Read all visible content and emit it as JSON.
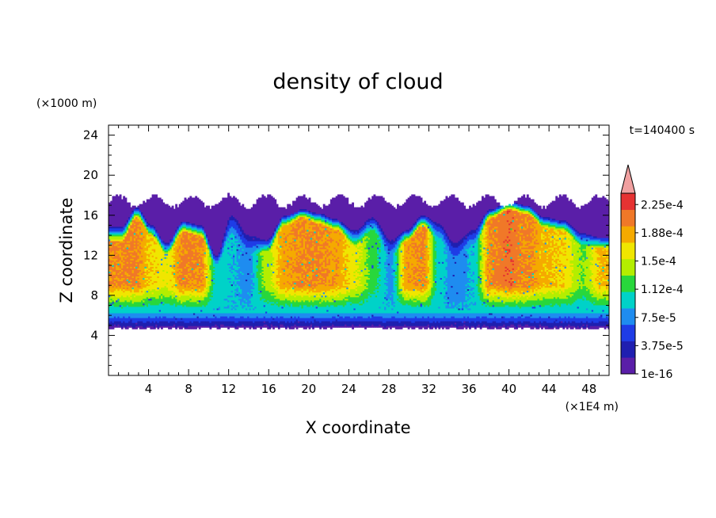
{
  "chart_data": {
    "type": "heatmap",
    "title": "density of cloud",
    "xlabel": "X coordinate",
    "ylabel": "Z coordinate",
    "x_unit": "(×1E4 m)",
    "y_unit": "(×1000 m)",
    "time_label": "t=140400 s",
    "xlim": [
      0,
      50
    ],
    "ylim": [
      0,
      25
    ],
    "x_ticks": [
      4,
      8,
      12,
      16,
      20,
      24,
      28,
      32,
      36,
      40,
      44,
      48
    ],
    "y_ticks": [
      4,
      8,
      12,
      16,
      20,
      24
    ],
    "cloud_base": 4.6,
    "colorbar": {
      "labels": [
        "2.25e-4",
        "1.88e-4",
        "1.5e-4",
        "1.12e-4",
        "7.5e-5",
        "3.75e-5",
        "1e-16"
      ],
      "levels": [
        0,
        3.75e-05,
        7.5e-05,
        0.0001125,
        0.00015,
        0.0001875,
        0.000225,
        0.00024
      ],
      "colors": [
        "#5a1ea8",
        "#1f1fb0",
        "#1e3ce6",
        "#1e8cf0",
        "#00d2c8",
        "#28d73c",
        "#b4ee00",
        "#f0e600",
        "#f5aa00",
        "#f07828",
        "#e63232"
      ],
      "extend_color": "#f0a0a0"
    },
    "columns": [
      {
        "x": 1.3,
        "top": 14.8,
        "core_top": 13.5,
        "peak": 0.0002
      },
      {
        "x": 2.8,
        "top": 16.8,
        "core_top": 15.8,
        "peak": 0.0002
      },
      {
        "x": 4.3,
        "top": 15.0,
        "core_top": 14.0,
        "peak": 0.00017
      },
      {
        "x": 5.8,
        "top": 13.2,
        "core_top": 12.2,
        "peak": 0.00016
      },
      {
        "x": 7.5,
        "top": 15.4,
        "core_top": 14.4,
        "peak": 0.0002
      },
      {
        "x": 9.2,
        "top": 15.0,
        "core_top": 14.0,
        "peak": 0.0002
      },
      {
        "x": 10.8,
        "top": 12.0,
        "core_top": 11.0,
        "peak": 0.0001
      },
      {
        "x": 12.3,
        "top": 16.0,
        "core_top": 14.0,
        "peak": 9e-05
      },
      {
        "x": 14.0,
        "top": 14.0,
        "core_top": 12.0,
        "peak": 8e-05
      },
      {
        "x": 15.8,
        "top": 13.5,
        "core_top": 12.5,
        "peak": 0.00014
      },
      {
        "x": 17.6,
        "top": 16.0,
        "core_top": 15.0,
        "peak": 0.00019
      },
      {
        "x": 19.4,
        "top": 16.6,
        "core_top": 15.8,
        "peak": 0.0002
      },
      {
        "x": 21.0,
        "top": 16.2,
        "core_top": 15.2,
        "peak": 0.0002
      },
      {
        "x": 22.8,
        "top": 15.6,
        "core_top": 14.6,
        "peak": 0.00019
      },
      {
        "x": 24.6,
        "top": 14.5,
        "core_top": 13.0,
        "peak": 0.00016
      },
      {
        "x": 26.4,
        "top": 15.8,
        "core_top": 14.5,
        "peak": 0.00012
      },
      {
        "x": 28.2,
        "top": 13.5,
        "core_top": 12.0,
        "peak": 8e-05
      },
      {
        "x": 29.8,
        "top": 14.5,
        "core_top": 13.5,
        "peak": 0.00019
      },
      {
        "x": 31.4,
        "top": 16.0,
        "core_top": 15.0,
        "peak": 0.0002
      },
      {
        "x": 33.0,
        "top": 15.2,
        "core_top": 13.5,
        "peak": 0.0001
      },
      {
        "x": 34.6,
        "top": 13.2,
        "core_top": 11.5,
        "peak": 7e-05
      },
      {
        "x": 36.4,
        "top": 14.5,
        "core_top": 13.0,
        "peak": 9e-05
      },
      {
        "x": 38.2,
        "top": 16.6,
        "core_top": 15.8,
        "peak": 0.0002
      },
      {
        "x": 40.0,
        "top": 17.4,
        "core_top": 16.6,
        "peak": 0.00021
      },
      {
        "x": 41.8,
        "top": 17.0,
        "core_top": 16.2,
        "peak": 0.0002
      },
      {
        "x": 43.6,
        "top": 15.8,
        "core_top": 14.8,
        "peak": 0.00018
      },
      {
        "x": 45.4,
        "top": 15.5,
        "core_top": 14.5,
        "peak": 0.00017
      },
      {
        "x": 47.4,
        "top": 14.2,
        "core_top": 13.0,
        "peak": 0.00013
      },
      {
        "x": 49.2,
        "top": 13.8,
        "core_top": 12.8,
        "peak": 0.00018
      }
    ]
  }
}
